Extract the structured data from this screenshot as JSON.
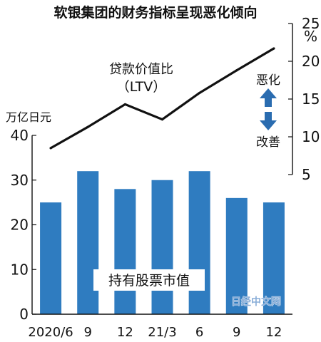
{
  "chart_data": {
    "type": "bar+line",
    "title": "软银集团的财务指标呈现恶化倾向",
    "categories": [
      "2020/6",
      "9",
      "12",
      "21/3",
      "6",
      "9",
      "12"
    ],
    "bar_series": {
      "name": "持有股票市值",
      "unit": "万亿日元",
      "values": [
        25,
        32,
        28,
        30,
        32,
        26,
        25
      ],
      "ylim": [
        0,
        40
      ],
      "ticks": [
        "0",
        "10",
        "20",
        "30",
        "40"
      ],
      "color": "#2f7cc0"
    },
    "line_series": {
      "name": "贷款价值比",
      "name_en": "（LTV）",
      "unit": "%",
      "values": [
        8.5,
        11.3,
        14.3,
        12.3,
        15.8,
        18.8,
        21.7
      ],
      "ylim": [
        5,
        25
      ],
      "ticks": [
        "5",
        "10",
        "15",
        "20",
        "25"
      ],
      "color": "#111111"
    },
    "annotations": {
      "worse": "恶化",
      "better": "改善",
      "arrow_color": "#2a6cb0"
    },
    "watermark": "日经中文网",
    "grid": false
  }
}
